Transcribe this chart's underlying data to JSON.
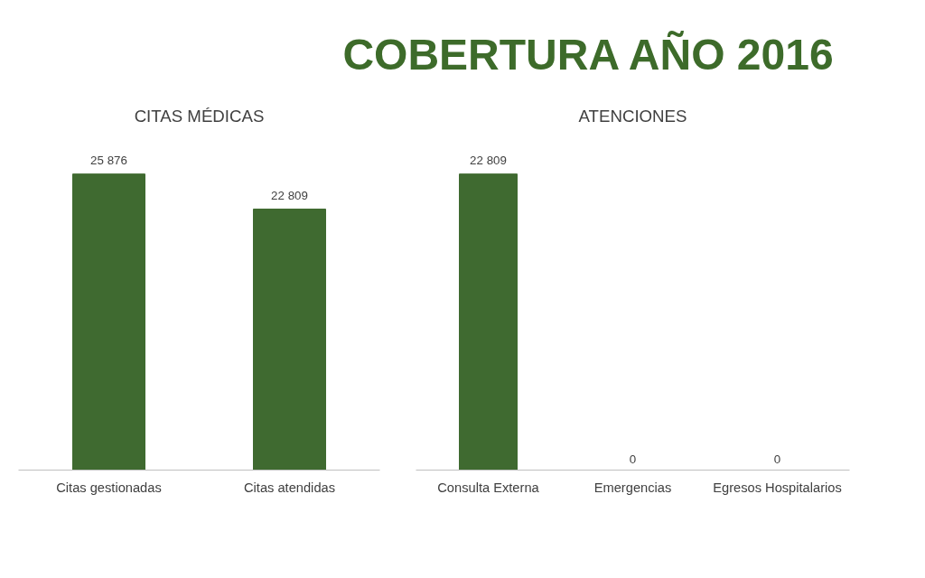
{
  "chart_data": [
    {
      "type": "other",
      "title": "COBERTURA AÑO 2016"
    },
    {
      "type": "bar",
      "subtitle": "CITAS MÉDICAS",
      "categories": [
        "Citas gestionadas",
        "Citas atendidas"
      ],
      "values": [
        25876,
        22809
      ],
      "value_labels": [
        "25 876",
        "22 809"
      ],
      "color": "#3f6a30",
      "grid": false
    },
    {
      "type": "bar",
      "subtitle": "ATENCIONES",
      "categories": [
        "Consulta Externa",
        "Emergencias",
        "Egresos Hospitalarios"
      ],
      "values": [
        22809,
        0,
        0
      ],
      "value_labels": [
        "22 809",
        "0",
        "0"
      ],
      "color": "#3f6a30",
      "grid": false
    }
  ]
}
